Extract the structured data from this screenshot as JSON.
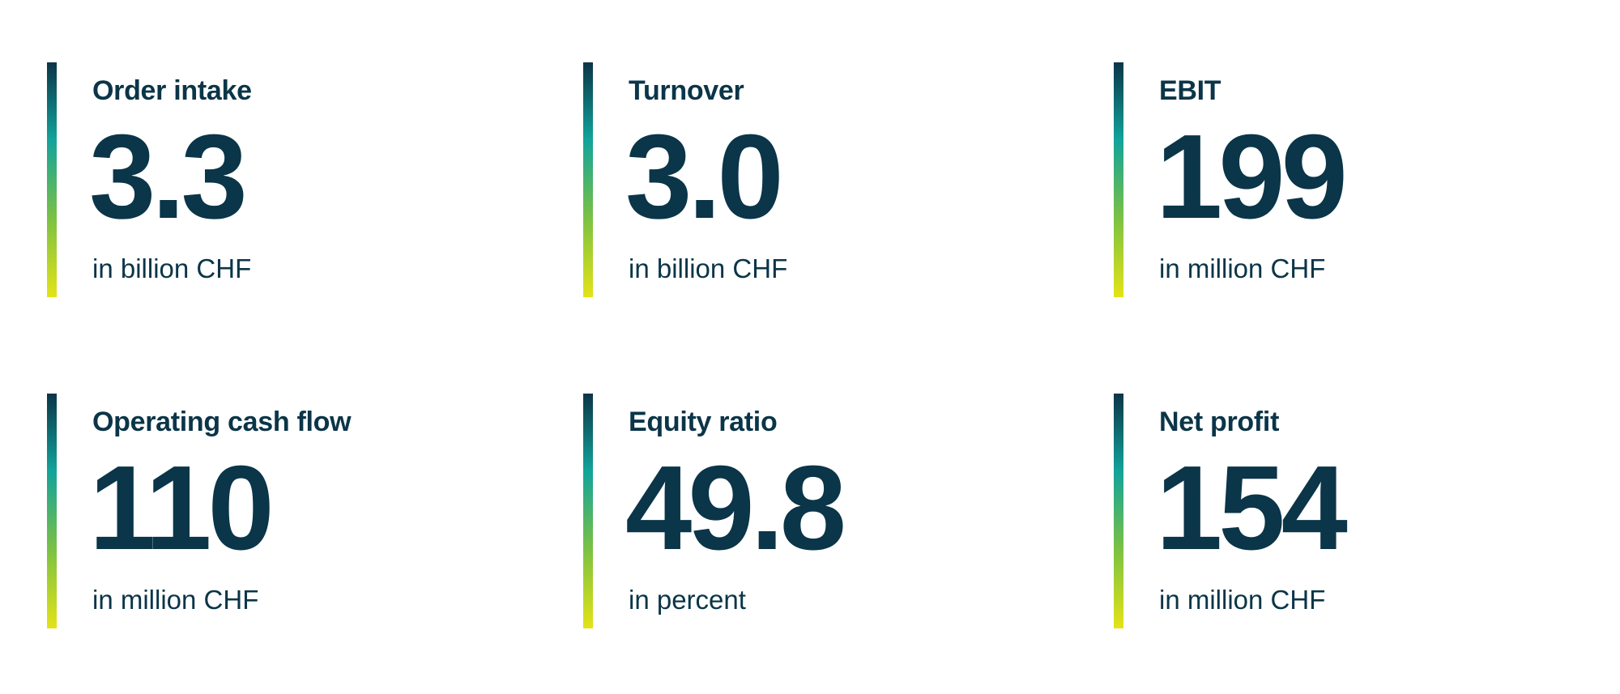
{
  "accent_gradient": [
    "#0b3548",
    "#12a39b",
    "#7dc242",
    "#e4e316"
  ],
  "text_color": "#0b3548",
  "kpis": [
    {
      "label": "Order intake",
      "value": "3.3",
      "unit": "in billion CHF"
    },
    {
      "label": "Turnover",
      "value": "3.0",
      "unit": "in billion CHF"
    },
    {
      "label": "EBIT",
      "value": "199",
      "unit": "in million CHF"
    },
    {
      "label": "Operating cash flow",
      "value": "110",
      "unit": "in million CHF"
    },
    {
      "label": "Equity ratio",
      "value": "49.8",
      "unit": "in percent"
    },
    {
      "label": "Net profit",
      "value": "154",
      "unit": "in million CHF"
    }
  ]
}
